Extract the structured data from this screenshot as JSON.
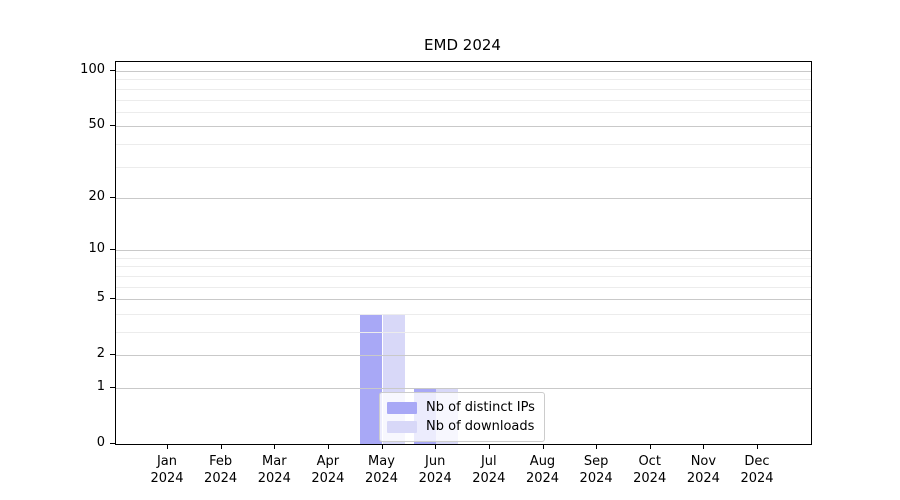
{
  "figure": {
    "background": "#ffffff"
  },
  "chart_data": {
    "type": "bar",
    "title": "EMD 2024",
    "x_categories": [
      {
        "month": "Jan",
        "year": "2024"
      },
      {
        "month": "Feb",
        "year": "2024"
      },
      {
        "month": "Mar",
        "year": "2024"
      },
      {
        "month": "Apr",
        "year": "2024"
      },
      {
        "month": "May",
        "year": "2024"
      },
      {
        "month": "Jun",
        "year": "2024"
      },
      {
        "month": "Jul",
        "year": "2024"
      },
      {
        "month": "Aug",
        "year": "2024"
      },
      {
        "month": "Sep",
        "year": "2024"
      },
      {
        "month": "Oct",
        "year": "2024"
      },
      {
        "month": "Nov",
        "year": "2024"
      },
      {
        "month": "Dec",
        "year": "2024"
      }
    ],
    "series": [
      {
        "name": "Nb of distinct IPs",
        "color": "#a8a8f6",
        "values": [
          0,
          0,
          0,
          0,
          4,
          1,
          0,
          0,
          0,
          0,
          0,
          0
        ]
      },
      {
        "name": "Nb of downloads",
        "color": "#d8d8f8",
        "values": [
          0,
          0,
          0,
          0,
          4,
          1,
          0,
          0,
          0,
          0,
          0,
          0
        ]
      }
    ],
    "xlabel": "",
    "ylabel": "",
    "yscale": "log1p",
    "ylim": [
      0,
      112
    ],
    "yticks": [
      0,
      1,
      2,
      5,
      10,
      20,
      50,
      100
    ],
    "minor_gridlines": [
      3,
      4,
      6,
      7,
      8,
      9,
      30,
      40,
      60,
      70,
      80,
      90
    ],
    "grid": "horizontal",
    "legend": {
      "position": "inside-lower-center",
      "framed": true
    }
  },
  "colors": {
    "axis": "#000000",
    "grid_major": "#c9c9c9",
    "grid_minor": "#ececec",
    "legend_border": "#cccccc",
    "legend_background": "rgba(255,255,255,0.78)"
  }
}
